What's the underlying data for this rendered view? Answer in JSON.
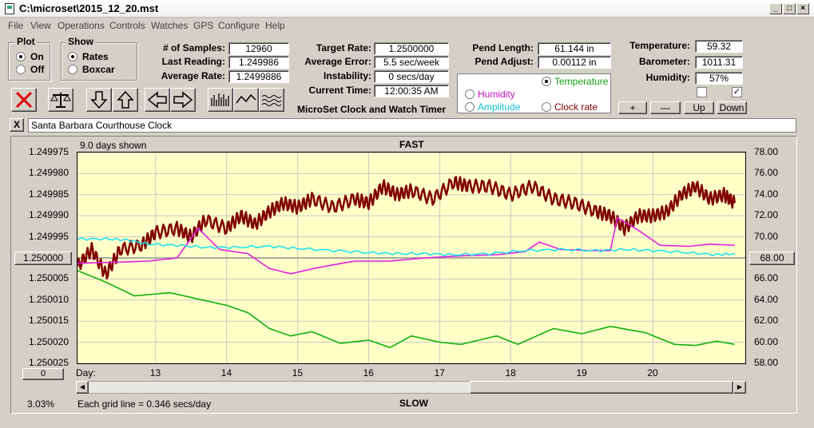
{
  "window": {
    "title": "C:\\microset\\2015_12_20.mst"
  },
  "menu": [
    "File",
    "View",
    "Operations",
    "Controls",
    "Watches",
    "GPS",
    "Configure",
    "Help"
  ],
  "plot_group": {
    "label": "Plot",
    "on": "On",
    "off": "Off"
  },
  "show_group": {
    "label": "Show",
    "rates": "Rates",
    "boxcar": "Boxcar"
  },
  "stats": {
    "samples_label": "# of Samples:",
    "samples": "12960",
    "last_label": "Last Reading:",
    "last": "1.249986",
    "avg_label": "Average Rate:",
    "avg": "1.2499886"
  },
  "rates": {
    "target_label": "Target Rate:",
    "target": "1.2500000",
    "avgerr_label": "Average Error:",
    "avgerr": "5.5 sec/week",
    "instab_label": "Instability:",
    "instab": "0 secs/day",
    "time_label": "Current Time:",
    "time": "12:00:35 AM"
  },
  "app_caption": "MicroSet Clock and Watch Timer",
  "pend": {
    "length_label": "Pend Length:",
    "length": "61.144 in",
    "adjust_label": "Pend Adjust:",
    "adjust": "0.00112 in"
  },
  "trace_select": {
    "temperature": "Temperature",
    "humidity": "Humidity",
    "amplitude": "Amplitude",
    "clock_rate": "Clock rate"
  },
  "env": {
    "temp_label": "Temperature:",
    "temp": "59.32",
    "baro_label": "Barometer:",
    "baro": "1011.31",
    "hum_label": "Humidity:",
    "hum": "57%"
  },
  "adjust_buttons": {
    "plus": "+",
    "minus": "—",
    "up": "Up",
    "down": "Down"
  },
  "clock_name": "Santa Barbara Courthouse Clock",
  "close_x": "X",
  "colors": {
    "rate": "#800000",
    "temperature": "#10b010",
    "humidity": "#e020e0",
    "amplitude": "#20e0f0",
    "plot_bg": "#ffffc8",
    "grid": "#c8c8c8"
  },
  "chart_header": {
    "days_shown": "9.0 days shown",
    "fast": "FAST",
    "slow": "SLOW"
  },
  "chart_footer": {
    "percent": "3.03%",
    "grid_note": "Each grid line = 0.346 secs/day",
    "zero_button": "0",
    "day_label": "Day:"
  },
  "center_left_button": "1.250000",
  "center_right_button": "68.00",
  "chart_data": {
    "type": "line",
    "x_ticks": [
      "13",
      "14",
      "15",
      "16",
      "17",
      "18",
      "19",
      "20"
    ],
    "x_tick_values": [
      13,
      14,
      15,
      16,
      17,
      18,
      19,
      20
    ],
    "xlim": [
      11.9,
      21.3
    ],
    "left_ticks": [
      "1.249975",
      "1.249980",
      "1.249985",
      "1.249990",
      "1.249995",
      "1.250005",
      "1.250010",
      "1.250015",
      "1.250020",
      "1.250025"
    ],
    "left_tick_values": [
      1.249975,
      1.24998,
      1.249985,
      1.24999,
      1.249995,
      1.250005,
      1.25001,
      1.250015,
      1.25002,
      1.250025
    ],
    "left_ylim": [
      1.249975,
      1.250025
    ],
    "left_inverted": true,
    "right_ticks": [
      "78.00",
      "76.00",
      "74.00",
      "72.00",
      "70.00",
      "66.00",
      "64.00",
      "62.00",
      "60.00",
      "58.00"
    ],
    "right_tick_values": [
      78,
      76,
      74,
      72,
      70,
      66,
      64,
      62,
      60,
      58
    ],
    "right_ylim": [
      58,
      78
    ],
    "series": [
      {
        "key": "rate",
        "axis": "left",
        "width": 2.5,
        "points": [
          [
            11.9,
            1.250002
          ],
          [
            12.1,
            1.249998
          ],
          [
            12.3,
            1.250004
          ],
          [
            12.5,
            1.249998
          ],
          [
            12.8,
            1.249997
          ],
          [
            13.0,
            1.249994
          ],
          [
            13.3,
            1.249993
          ],
          [
            13.5,
            1.249995
          ],
          [
            13.7,
            1.249991
          ],
          [
            14.0,
            1.249993
          ],
          [
            14.2,
            1.24999
          ],
          [
            14.4,
            1.249992
          ],
          [
            14.6,
            1.249989
          ],
          [
            14.8,
            1.249987
          ],
          [
            15.0,
            1.249988
          ],
          [
            15.2,
            1.249986
          ],
          [
            15.5,
            1.249988
          ],
          [
            15.8,
            1.249986
          ],
          [
            16.0,
            1.249987
          ],
          [
            16.2,
            1.249983
          ],
          [
            16.4,
            1.249985
          ],
          [
            16.6,
            1.249984
          ],
          [
            16.9,
            1.249986
          ],
          [
            17.2,
            1.249982
          ],
          [
            17.4,
            1.249983
          ],
          [
            17.7,
            1.249983
          ],
          [
            18.0,
            1.249985
          ],
          [
            18.3,
            1.249983
          ],
          [
            18.6,
            1.249986
          ],
          [
            18.9,
            1.249987
          ],
          [
            19.2,
            1.249989
          ],
          [
            19.4,
            1.24999
          ],
          [
            19.6,
            1.249993
          ],
          [
            19.8,
            1.24999
          ],
          [
            20.0,
            1.24999
          ],
          [
            20.2,
            1.249989
          ],
          [
            20.4,
            1.249985
          ],
          [
            20.6,
            1.249983
          ],
          [
            20.8,
            1.249986
          ],
          [
            21.0,
            1.249985
          ],
          [
            21.15,
            1.249987
          ]
        ]
      },
      {
        "key": "temperature",
        "axis": "right",
        "width": 1.6,
        "points": [
          [
            11.9,
            66.8
          ],
          [
            12.3,
            65.7
          ],
          [
            12.7,
            64.4
          ],
          [
            13.2,
            64.7
          ],
          [
            13.6,
            64.1
          ],
          [
            14.0,
            63.5
          ],
          [
            14.3,
            62.8
          ],
          [
            14.6,
            61.3
          ],
          [
            14.9,
            60.6
          ],
          [
            15.2,
            61.0
          ],
          [
            15.6,
            59.9
          ],
          [
            16.0,
            60.2
          ],
          [
            16.3,
            59.5
          ],
          [
            16.6,
            60.6
          ],
          [
            17.0,
            60.0
          ],
          [
            17.3,
            59.8
          ],
          [
            17.8,
            60.6
          ],
          [
            18.1,
            59.8
          ],
          [
            18.6,
            61.3
          ],
          [
            19.0,
            60.8
          ],
          [
            19.4,
            61.5
          ],
          [
            19.9,
            60.9
          ],
          [
            20.3,
            59.8
          ],
          [
            20.6,
            59.7
          ],
          [
            20.9,
            60.1
          ],
          [
            21.15,
            59.8
          ]
        ]
      },
      {
        "key": "humidity",
        "axis": "right",
        "width": 1.6,
        "points": [
          [
            11.9,
            67.5
          ],
          [
            12.5,
            67.6
          ],
          [
            12.9,
            67.7
          ],
          [
            13.3,
            68.0
          ],
          [
            13.6,
            70.8
          ],
          [
            13.9,
            68.8
          ],
          [
            14.3,
            68.4
          ],
          [
            14.6,
            67.0
          ],
          [
            14.9,
            66.5
          ],
          [
            15.3,
            67.1
          ],
          [
            15.8,
            67.7
          ],
          [
            16.3,
            67.7
          ],
          [
            16.8,
            68.0
          ],
          [
            17.3,
            68.2
          ],
          [
            17.8,
            68.3
          ],
          [
            18.2,
            68.6
          ],
          [
            18.4,
            69.5
          ],
          [
            18.7,
            68.8
          ],
          [
            19.1,
            68.7
          ],
          [
            19.4,
            68.7
          ],
          [
            19.5,
            71.8
          ],
          [
            19.8,
            70.6
          ],
          [
            20.1,
            69.2
          ],
          [
            20.5,
            69.1
          ],
          [
            20.8,
            69.3
          ],
          [
            21.15,
            69.2
          ]
        ]
      },
      {
        "key": "amplitude",
        "axis": "right",
        "width": 1.6,
        "points": [
          [
            11.9,
            69.8
          ],
          [
            12.3,
            69.8
          ],
          [
            12.6,
            69.7
          ],
          [
            12.9,
            69.3
          ],
          [
            13.3,
            69.2
          ],
          [
            13.7,
            69.0
          ],
          [
            14.1,
            69.0
          ],
          [
            14.6,
            69.1
          ],
          [
            15.0,
            68.9
          ],
          [
            15.5,
            68.7
          ],
          [
            16.0,
            68.5
          ],
          [
            16.4,
            68.4
          ],
          [
            16.8,
            68.4
          ],
          [
            17.2,
            68.3
          ],
          [
            17.7,
            68.4
          ],
          [
            18.2,
            68.7
          ],
          [
            18.7,
            68.8
          ],
          [
            19.2,
            68.7
          ],
          [
            19.6,
            68.8
          ],
          [
            20.0,
            68.7
          ],
          [
            20.5,
            68.5
          ],
          [
            20.9,
            68.3
          ],
          [
            21.15,
            68.4
          ]
        ]
      }
    ]
  }
}
